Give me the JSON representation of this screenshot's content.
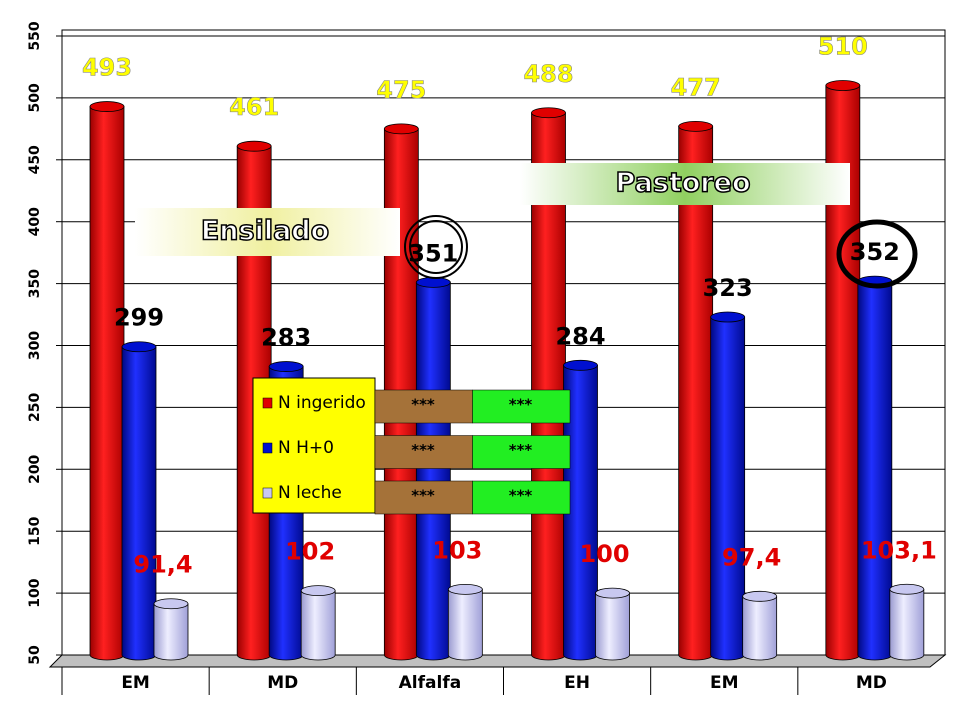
{
  "chart_data": {
    "type": "bar",
    "categories": [
      "EM",
      "MD",
      "Alfalfa",
      "EH",
      "EM",
      "MD"
    ],
    "series": [
      {
        "name": "N ingerido",
        "color": "#e00000",
        "values": [
          493,
          461,
          475,
          488,
          477,
          510
        ]
      },
      {
        "name": "N H+0",
        "color": "#0010d0",
        "values": [
          299,
          283,
          351,
          284,
          323,
          352
        ]
      },
      {
        "name": "N leche",
        "color": "#c8c8f0",
        "values": [
          91.4,
          102,
          103,
          100,
          97.4,
          103.1
        ],
        "value_labels": [
          "91,4",
          "102",
          "103",
          "100",
          "97,4",
          "103,1"
        ]
      }
    ],
    "ylim": [
      50,
      550
    ],
    "yticks": [
      50,
      100,
      150,
      200,
      250,
      300,
      350,
      400,
      450,
      500,
      550
    ],
    "grid": true,
    "annotations": [
      "Ensilado",
      "Pastoreo"
    ],
    "significance": [
      [
        "***",
        "***"
      ],
      [
        "***",
        "***"
      ],
      [
        "***",
        "***"
      ]
    ]
  }
}
